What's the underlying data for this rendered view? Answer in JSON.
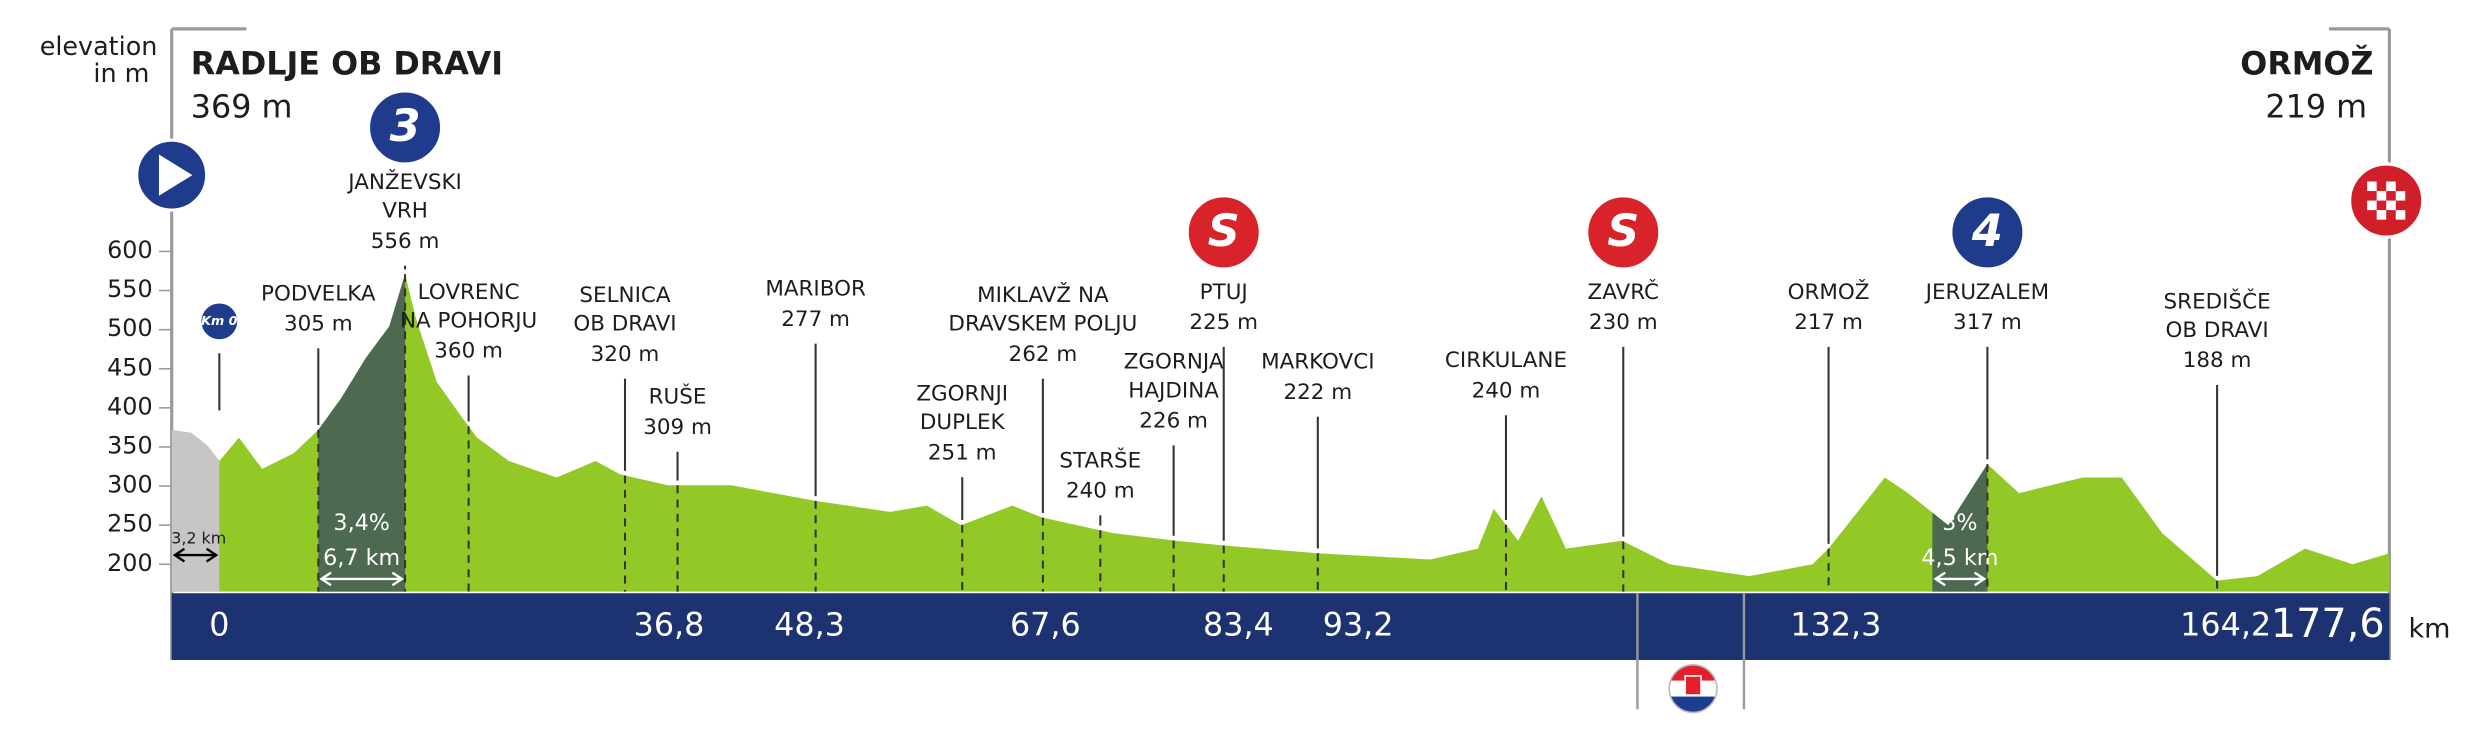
{
  "chart_data": {
    "type": "area",
    "y_axis_label": [
      "elevation",
      "in m"
    ],
    "start": {
      "name": "RADLJE OB DRAVI",
      "elevation": "369 m"
    },
    "finish": {
      "name": "ORMOŽ",
      "elevation": "219 m"
    },
    "x": [
      -3.9,
      -2.3,
      -1.0,
      0,
      1.6,
      3.5,
      6.1,
      8.1,
      10.0,
      12.0,
      13.9,
      15.2,
      16.1,
      17.8,
      19.8,
      21.1,
      23.7,
      27.6,
      30.8,
      32.8,
      36.7,
      41.9,
      48.8,
      54.9,
      57.9,
      60.7,
      64.9,
      67.3,
      73.1,
      78.3,
      82.2,
      90.0,
      99.1,
      103.0,
      104.3,
      106.3,
      108.2,
      110.2,
      114.8,
      118.7,
      125.2,
      130.4,
      131.7,
      136.3,
      138.2,
      141.5,
      144.7,
      147.3,
      152.5,
      155.7,
      159.0,
      163.5,
      166.8,
      170.7,
      174.6,
      177.6
    ],
    "values": [
      372,
      368,
      352,
      332,
      362,
      322,
      342,
      372,
      413,
      464,
      504,
      571,
      514,
      433,
      389,
      362,
      332,
      311,
      332,
      315,
      301,
      301,
      281,
      267,
      275,
      250,
      275,
      260,
      240,
      230,
      224,
      214,
      206,
      220,
      271,
      230,
      287,
      220,
      230,
      200,
      185,
      200,
      220,
      311,
      291,
      250,
      328,
      291,
      311,
      311,
      240,
      179,
      185,
      220,
      200,
      214
    ],
    "color": "#93c926",
    "climb_color": "#4d6a50",
    "neutral_color": "#c6c6c6",
    "xlim": [
      -3.9,
      177.6
    ],
    "ylim": [
      165,
      600
    ],
    "yticks": [
      200,
      250,
      300,
      350,
      400,
      450,
      500,
      550,
      600
    ],
    "km_unit": "km",
    "km_markers": [
      {
        "value": 0,
        "label": "0"
      },
      {
        "value": 36.8,
        "label": "36,8"
      },
      {
        "value": 48.3,
        "label": "48,3"
      },
      {
        "value": 67.6,
        "label": "67,6"
      },
      {
        "value": 83.4,
        "label": "83,4"
      },
      {
        "value": 93.2,
        "label": "93,2"
      },
      {
        "value": 132.3,
        "label": "132,3"
      },
      {
        "value": 164.2,
        "label": "164,2"
      },
      {
        "value": 177.6,
        "label": "177,6"
      }
    ],
    "km0_badge": "Km 0",
    "neutral": {
      "start": -3.9,
      "end": 0,
      "label": "3,2 km"
    },
    "climbs": [
      {
        "start": 8.1,
        "end": 15.2,
        "gradient": "3,4%",
        "length": "6,7 km"
      },
      {
        "start": 140.2,
        "end": 144.7,
        "gradient": "3%",
        "length": "4,5 km"
      }
    ],
    "places": [
      {
        "name": [
          "PODVELKA"
        ],
        "elevation": "305 m",
        "km": 8.1
      },
      {
        "name": [
          "JANŽEVSKI",
          "VRH"
        ],
        "elevation": "556 m",
        "km": 15.2,
        "badge": {
          "type": "kom",
          "text": "3"
        }
      },
      {
        "name": [
          "LOVRENC",
          "NA POHORJU"
        ],
        "elevation": "360 m",
        "km": 20.4
      },
      {
        "name": [
          "SELNICA",
          "OB DRAVI"
        ],
        "elevation": "320 m",
        "km": 33.2
      },
      {
        "name": [
          "RUŠE"
        ],
        "elevation": "309 m",
        "km": 37.5
      },
      {
        "name": [
          "MARIBOR"
        ],
        "elevation": "277 m",
        "km": 48.8
      },
      {
        "name": [
          "ZGORNJI",
          "DUPLEK"
        ],
        "elevation": "251 m",
        "km": 60.8
      },
      {
        "name": [
          "MIKLAVŽ NA",
          "DRAVSKEM POLJU"
        ],
        "elevation": "262 m",
        "km": 67.4
      },
      {
        "name": [
          "STARŠE"
        ],
        "elevation": "240 m",
        "km": 72.1
      },
      {
        "name": [
          "ZGORNJA",
          "HAJDINA"
        ],
        "elevation": "226 m",
        "km": 78.1
      },
      {
        "name": [
          "PTUJ"
        ],
        "elevation": "225 m",
        "km": 82.2,
        "badge": {
          "type": "sprint",
          "text": "S"
        }
      },
      {
        "name": [
          "MARKOVCI"
        ],
        "elevation": "222 m",
        "km": 89.9
      },
      {
        "name": [
          "CIRKULANE"
        ],
        "elevation": "240 m",
        "km": 105.3
      },
      {
        "name": [
          "ZAVRČ"
        ],
        "elevation": "230 m",
        "km": 114.9,
        "badge": {
          "type": "sprint",
          "text": "S"
        }
      },
      {
        "name": [
          "ORMOŽ"
        ],
        "elevation": "217 m",
        "km": 131.7
      },
      {
        "name": [
          "JERUZALEM"
        ],
        "elevation": "317 m",
        "km": 144.7,
        "badge": {
          "type": "kom",
          "text": "4"
        }
      },
      {
        "name": [
          "SREDIŠČE",
          "OB DRAVI"
        ],
        "elevation": "188 m",
        "km": 163.5
      }
    ]
  }
}
